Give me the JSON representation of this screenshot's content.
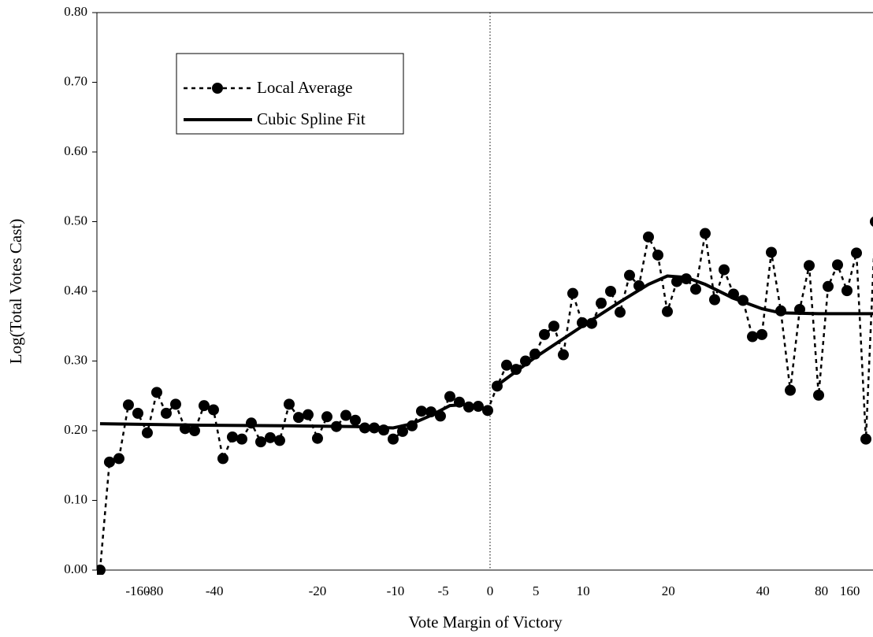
{
  "chart_data": {
    "type": "line",
    "x_label": "Vote Margin of Victory",
    "y_label": "Log(Total Votes Cast)",
    "xlim": [
      -0.33,
      81.75
    ],
    "xticks": [
      {
        "value": 4,
        "label": "-160"
      },
      {
        "value": 5.75,
        "label": "-80"
      },
      {
        "value": 12.1,
        "label": "-40"
      },
      {
        "value": 23,
        "label": "-20"
      },
      {
        "value": 31.25,
        "label": "-10"
      },
      {
        "value": 36.3,
        "label": "-5"
      },
      {
        "value": 41.25,
        "label": "0"
      },
      {
        "value": 46.1,
        "label": "5"
      },
      {
        "value": 51.1,
        "label": "10"
      },
      {
        "value": 60.1,
        "label": "20"
      },
      {
        "value": 70.1,
        "label": "40"
      },
      {
        "value": 76.3,
        "label": "80"
      },
      {
        "value": 79.3,
        "label": "160"
      }
    ],
    "ylim": [
      0,
      0.8
    ],
    "yticks": [
      {
        "value": 0,
        "label": "0.00"
      },
      {
        "value": 0.1,
        "label": "0.10"
      },
      {
        "value": 0.2,
        "label": "0.20"
      },
      {
        "value": 0.3,
        "label": "0.30"
      },
      {
        "value": 0.4,
        "label": "0.40"
      },
      {
        "value": 0.5,
        "label": "0.50"
      },
      {
        "value": 0.6,
        "label": "0.60"
      },
      {
        "value": 0.7,
        "label": "0.70"
      },
      {
        "value": 0.8,
        "label": "0.80"
      }
    ],
    "cutoff_x": 41.25,
    "series": [
      {
        "name": "Local Average",
        "color": "#000000",
        "style": "dotted-markers",
        "x": [
          0,
          1,
          2,
          3,
          4,
          5,
          6,
          7,
          8,
          9,
          10,
          11,
          12,
          13,
          14,
          15,
          16,
          17,
          18,
          19,
          20,
          21,
          22,
          23,
          24,
          25,
          26,
          27,
          28,
          29,
          30,
          31,
          32,
          33,
          34,
          35,
          36,
          37,
          38,
          39,
          40,
          41,
          42,
          43,
          44,
          45,
          46,
          47,
          48,
          49,
          50,
          51,
          52,
          53,
          54,
          55,
          56,
          57,
          58,
          59,
          60,
          61,
          62,
          63,
          64,
          65,
          66,
          67,
          68,
          69,
          70,
          71,
          72,
          73,
          74,
          75,
          76,
          77,
          78,
          79,
          80,
          81,
          82
        ],
        "values": [
          0.0,
          0.155,
          0.16,
          0.237,
          0.225,
          0.197,
          0.255,
          0.225,
          0.238,
          0.203,
          0.2,
          0.236,
          0.23,
          0.16,
          0.191,
          0.188,
          0.211,
          0.184,
          0.19,
          0.186,
          0.238,
          0.219,
          0.223,
          0.189,
          0.22,
          0.206,
          0.222,
          0.215,
          0.204,
          0.204,
          0.201,
          0.188,
          0.199,
          0.207,
          0.228,
          0.227,
          0.221,
          0.249,
          0.241,
          0.234,
          0.235,
          0.229,
          0.264,
          0.294,
          0.288,
          0.3,
          0.31,
          0.338,
          0.35,
          0.309,
          0.397,
          0.355,
          0.354,
          0.383,
          0.4,
          0.37,
          0.423,
          0.408,
          0.478,
          0.452,
          0.371,
          0.414,
          0.418,
          0.403,
          0.483,
          0.388,
          0.431,
          0.396,
          0.387,
          0.335,
          0.338,
          0.456,
          0.372,
          0.258,
          0.374,
          0.437,
          0.251,
          0.407,
          0.438,
          0.401,
          0.455,
          0.188,
          0.5
        ]
      },
      {
        "name": "Cubic Spline Fit",
        "color": "#000000",
        "style": "solid",
        "x": [
          0,
          10,
          20,
          27,
          31,
          33,
          35,
          37,
          39,
          41,
          null,
          42,
          46,
          51,
          55,
          58,
          60,
          62,
          64,
          67,
          70,
          72,
          76,
          82
        ],
        "values": [
          0.21,
          0.208,
          0.207,
          0.206,
          0.204,
          0.21,
          0.222,
          0.236,
          0.238,
          0.229,
          null,
          0.265,
          0.305,
          0.35,
          0.385,
          0.41,
          0.422,
          0.42,
          0.41,
          0.39,
          0.375,
          0.369,
          0.368,
          0.368
        ]
      }
    ]
  }
}
